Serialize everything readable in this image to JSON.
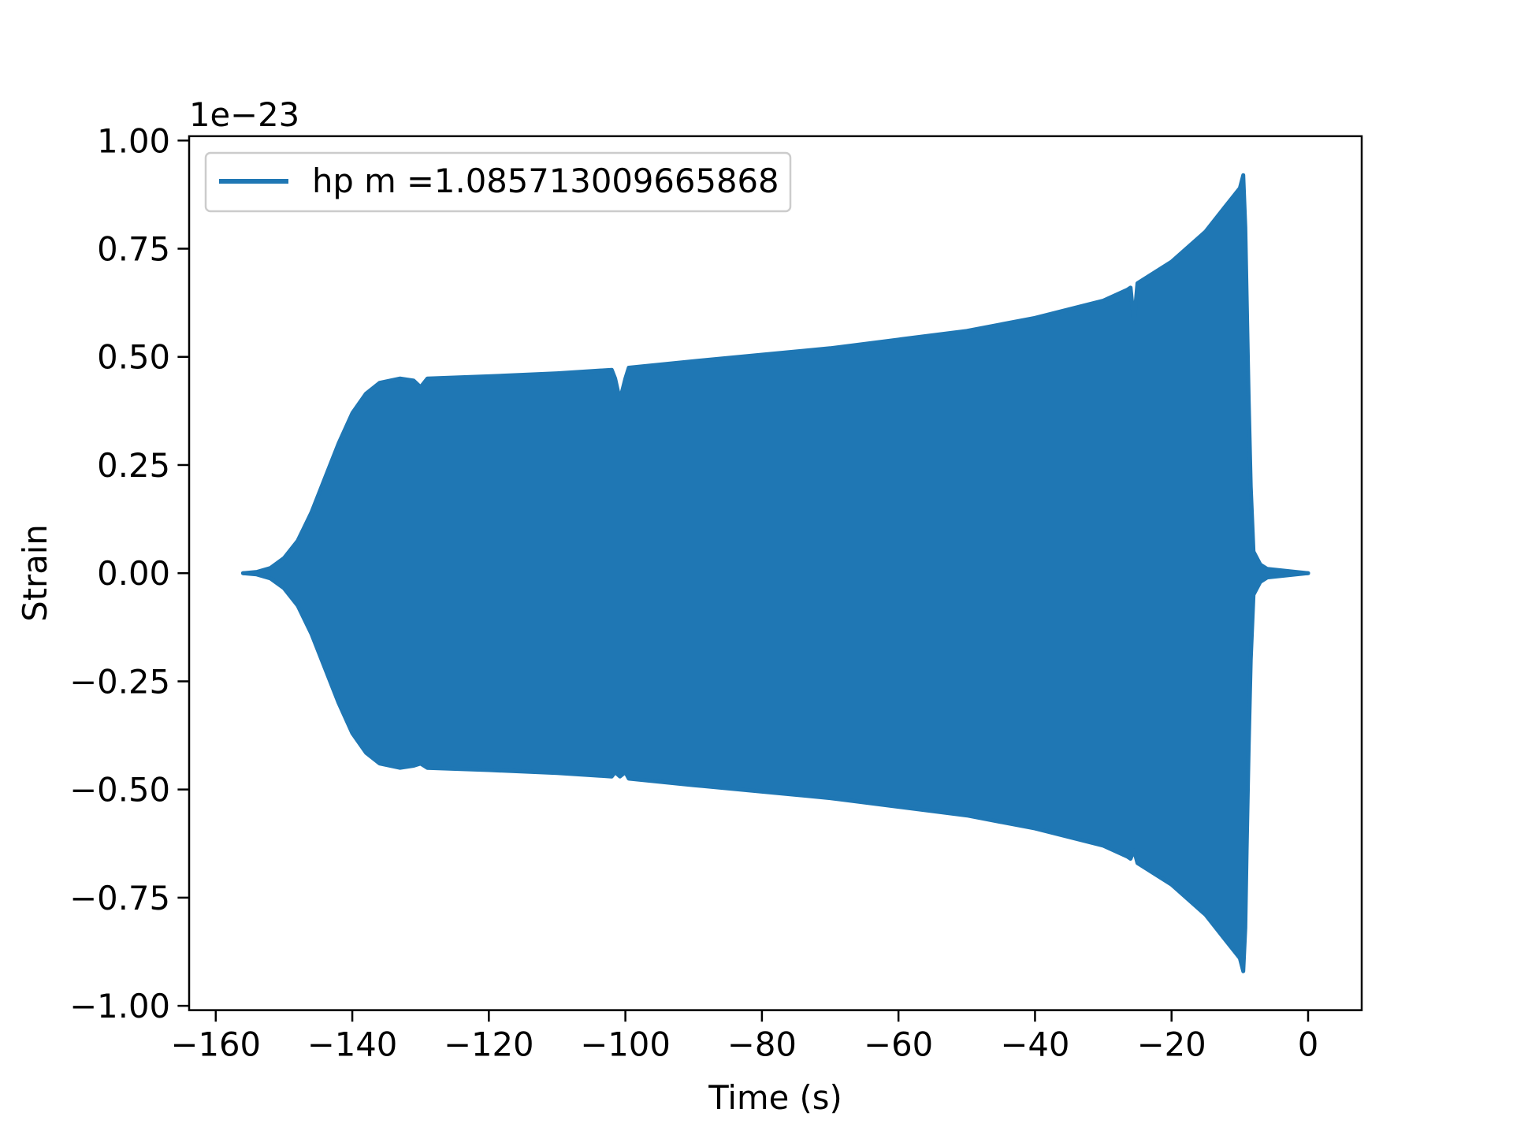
{
  "chart_data": {
    "type": "area",
    "title": "",
    "xlabel": "Time (s)",
    "ylabel": "Strain",
    "y_offset_label": "1e−23",
    "xlim": [
      -163.9,
      7.85
    ],
    "ylim": [
      -1.01,
      1.01
    ],
    "x_ticks": [
      -160,
      -140,
      -120,
      -100,
      -80,
      -60,
      -40,
      -20,
      0
    ],
    "x_tick_labels": [
      "−160",
      "−140",
      "−120",
      "−100",
      "−80",
      "−60",
      "−40",
      "−20",
      "0"
    ],
    "y_ticks": [
      1.0,
      0.75,
      0.5,
      0.25,
      0.0,
      -0.25,
      -0.5,
      -0.75,
      -1.0
    ],
    "y_tick_labels": [
      "1.00",
      "0.75",
      "0.50",
      "0.25",
      "0.00",
      "−0.25",
      "−0.50",
      "−0.75",
      "−1.00"
    ],
    "grid": false,
    "legend": {
      "position": "top-left",
      "entries": [
        "hp m =1.085713009665868"
      ]
    },
    "series": [
      {
        "name": "hp m =1.085713009665868",
        "color": "#1f77b4",
        "note_units": "strain x 1e-23, oscillation envelope",
        "x": [
          -156,
          -154,
          -152,
          -150,
          -148,
          -146,
          -144,
          -142,
          -140,
          -138,
          -136,
          -133,
          -131,
          -130,
          -129,
          -120,
          -110,
          -102,
          -101.5,
          -100.8,
          -100,
          -99.5,
          -90,
          -80,
          -70,
          -60,
          -50,
          -40,
          -30,
          -26.5,
          -26,
          -25.5,
          -25,
          -20,
          -15,
          -12,
          -10,
          -9.5,
          -9.2,
          -9,
          -8.7,
          -8.4,
          -8,
          -7,
          -6,
          -3,
          0
        ],
        "upper": [
          0,
          0.003,
          0.012,
          0.035,
          0.075,
          0.14,
          0.22,
          0.3,
          0.37,
          0.415,
          0.44,
          0.45,
          0.445,
          0.43,
          0.45,
          0.455,
          0.462,
          0.47,
          0.45,
          0.4,
          0.45,
          0.475,
          0.49,
          0.505,
          0.52,
          0.54,
          0.56,
          0.59,
          0.63,
          0.655,
          0.66,
          0.58,
          0.67,
          0.72,
          0.79,
          0.85,
          0.89,
          0.92,
          0.8,
          0.64,
          0.4,
          0.2,
          0.05,
          0.02,
          0.01,
          0.005,
          0
        ],
        "lower": [
          0,
          -0.003,
          -0.012,
          -0.035,
          -0.075,
          -0.14,
          -0.22,
          -0.3,
          -0.37,
          -0.415,
          -0.44,
          -0.45,
          -0.445,
          -0.44,
          -0.45,
          -0.455,
          -0.462,
          -0.47,
          -0.46,
          -0.47,
          -0.46,
          -0.475,
          -0.49,
          -0.505,
          -0.52,
          -0.54,
          -0.56,
          -0.59,
          -0.63,
          -0.655,
          -0.66,
          -0.64,
          -0.67,
          -0.72,
          -0.79,
          -0.85,
          -0.89,
          -0.92,
          -0.82,
          -0.64,
          -0.4,
          -0.2,
          -0.05,
          -0.02,
          -0.01,
          -0.005,
          0
        ]
      }
    ]
  }
}
